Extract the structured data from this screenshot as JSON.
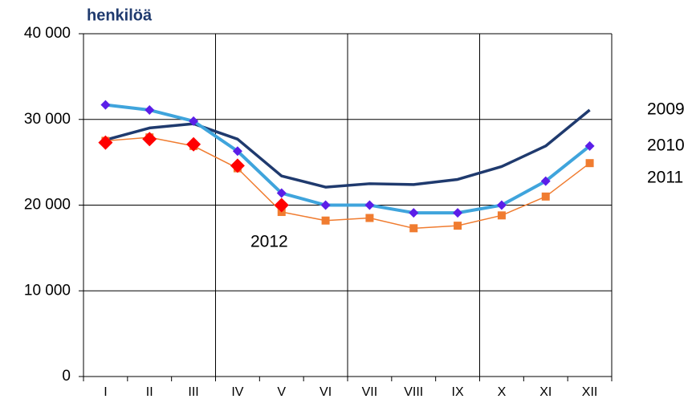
{
  "chart_data": {
    "type": "line",
    "y_label": "henkilöä",
    "categories": [
      "I",
      "II",
      "III",
      "IV",
      "V",
      "VI",
      "VII",
      "VIII",
      "IX",
      "X",
      "XI",
      "XII"
    ],
    "series": [
      {
        "name": "2009",
        "color": "#1f3a6e",
        "marker": "none",
        "values": [
          27600,
          29000,
          29500,
          27700,
          23400,
          22100,
          22500,
          22400,
          23000,
          24500,
          26900,
          31100
        ]
      },
      {
        "name": "2010",
        "color": "#3fa4dc",
        "marker": "diamond",
        "marker_color": "#5b1ee8",
        "values": [
          31700,
          31100,
          29800,
          26300,
          21400,
          20000,
          20000,
          19100,
          19100,
          20000,
          22800,
          26900
        ]
      },
      {
        "name": "2011",
        "color": "#f07c30",
        "marker": "square",
        "values": [
          27500,
          27900,
          26900,
          24300,
          19200,
          18200,
          18500,
          17300,
          17600,
          18800,
          21000,
          24900
        ]
      },
      {
        "name": "2012",
        "color": "#ff0000",
        "marker": "diamond-large",
        "values": [
          27300,
          27700,
          27100,
          24600,
          20000,
          null,
          null,
          null,
          null,
          null,
          null,
          null
        ]
      }
    ],
    "ylim": [
      0,
      40000
    ],
    "yticks": [
      {
        "value": 0,
        "label": "0"
      },
      {
        "value": 10000,
        "label": "10 000"
      },
      {
        "value": 20000,
        "label": "20 000"
      },
      {
        "value": 30000,
        "label": "30 000"
      },
      {
        "value": 40000,
        "label": "40 000"
      }
    ],
    "grid": true
  }
}
